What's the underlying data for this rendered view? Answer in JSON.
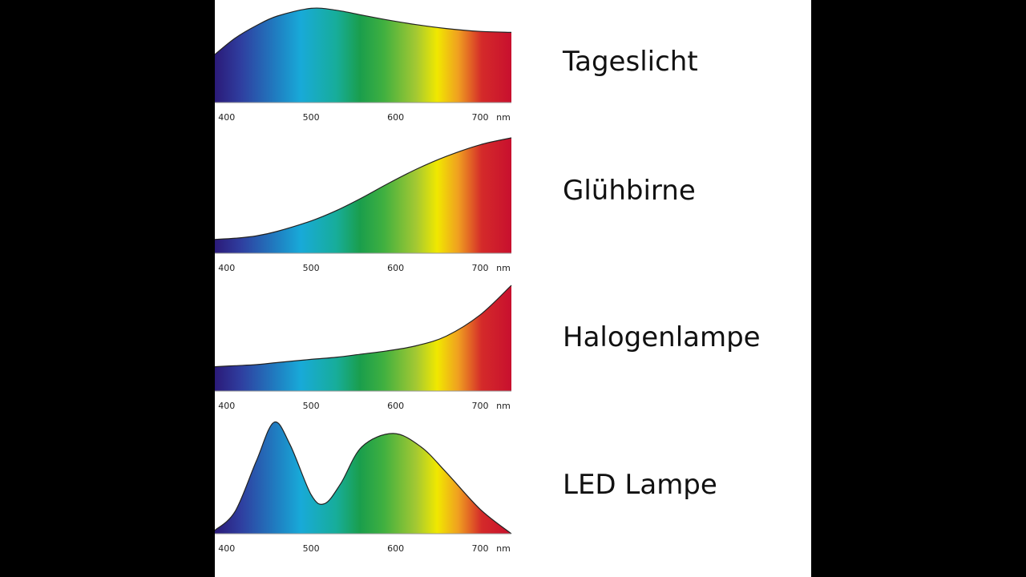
{
  "chart_data": [
    {
      "type": "area",
      "title": "Tageslicht",
      "xlabel": "nm",
      "x": [
        386,
        410,
        435,
        460,
        500,
        530,
        560,
        590,
        625,
        660,
        700,
        737
      ],
      "values": [
        50,
        67,
        80,
        90,
        98,
        96,
        91,
        86,
        81,
        77,
        74,
        73
      ],
      "xlim": [
        386,
        737
      ],
      "xticks": [
        400,
        500,
        600,
        700
      ],
      "ylim": [
        0,
        100
      ]
    },
    {
      "type": "area",
      "title": "Glühbirne",
      "xlabel": "nm",
      "x": [
        386,
        410,
        435,
        460,
        500,
        530,
        560,
        590,
        625,
        660,
        700,
        737
      ],
      "values": [
        12,
        13,
        15,
        19,
        28,
        37,
        48,
        60,
        73,
        84,
        94,
        100
      ],
      "xlim": [
        386,
        737
      ],
      "xticks": [
        400,
        500,
        600,
        700
      ],
      "ylim": [
        0,
        100
      ]
    },
    {
      "type": "area",
      "title": "Halogenlampe",
      "xlabel": "nm",
      "x": [
        386,
        410,
        435,
        460,
        500,
        530,
        560,
        590,
        625,
        660,
        700,
        737
      ],
      "values": [
        23,
        24,
        25,
        27,
        30,
        32,
        35,
        38,
        43,
        52,
        72,
        100
      ],
      "xlim": [
        386,
        737
      ],
      "xticks": [
        400,
        500,
        600,
        700
      ],
      "ylim": [
        0,
        100
      ]
    },
    {
      "type": "area",
      "title": "LED Lampe",
      "xlabel": "nm",
      "x": [
        386,
        410,
        435,
        456,
        475,
        500,
        516,
        535,
        560,
        597,
        630,
        660,
        700,
        737
      ],
      "values": [
        3,
        20,
        65,
        100,
        80,
        35,
        27,
        45,
        78,
        90,
        78,
        55,
        22,
        0
      ],
      "xlim": [
        386,
        737
      ],
      "xticks": [
        400,
        500,
        600,
        700
      ],
      "ylim": [
        0,
        100
      ]
    }
  ]
}
